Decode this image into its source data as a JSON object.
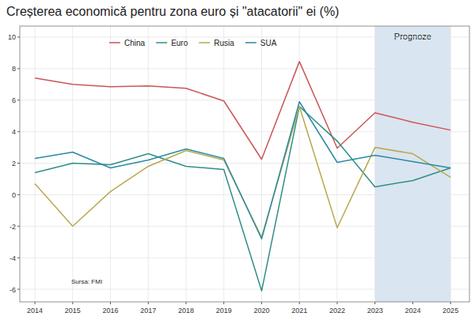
{
  "chart_data": {
    "type": "line",
    "title": "Creșterea economică pentru zona euro și \"atacatorii\" ei (%)",
    "x": [
      2014,
      2015,
      2016,
      2017,
      2018,
      2019,
      2020,
      2021,
      2022,
      2023,
      2024,
      2025
    ],
    "series": [
      {
        "name": "China",
        "color": "#cd5555",
        "values": [
          7.4,
          7.0,
          6.85,
          6.9,
          6.75,
          5.95,
          2.25,
          8.45,
          2.95,
          5.2,
          4.6,
          4.1
        ]
      },
      {
        "name": "Euro",
        "color": "#2f8f86",
        "values": [
          1.4,
          2.0,
          1.9,
          2.6,
          1.8,
          1.6,
          -6.1,
          5.6,
          3.4,
          0.5,
          0.9,
          1.7
        ]
      },
      {
        "name": "Rusia",
        "color": "#b8a84e",
        "values": [
          0.7,
          -2.0,
          0.2,
          1.8,
          2.8,
          2.2,
          -2.7,
          5.6,
          -2.1,
          3.0,
          2.6,
          1.1
        ]
      },
      {
        "name": "SUA",
        "color": "#2a8aa3",
        "values": [
          2.3,
          2.7,
          1.7,
          2.2,
          2.9,
          2.3,
          -2.8,
          5.9,
          2.05,
          2.5,
          2.1,
          1.7
        ]
      }
    ],
    "xlim": [
      2013.6,
      2025.5
    ],
    "xticks": [
      2014,
      2015,
      2016,
      2017,
      2018,
      2019,
      2020,
      2021,
      2022,
      2023,
      2024,
      2025
    ],
    "ylim": [
      -6.8,
      10.7
    ],
    "yticks": [
      -6,
      -4,
      -2,
      0,
      2,
      4,
      6,
      8,
      10
    ],
    "grid": true,
    "legend": "top",
    "annotations": [
      {
        "text": "Prognoze",
        "x_start": 2023,
        "x_end": 2025
      }
    ],
    "source": "Sursa: FMI"
  }
}
